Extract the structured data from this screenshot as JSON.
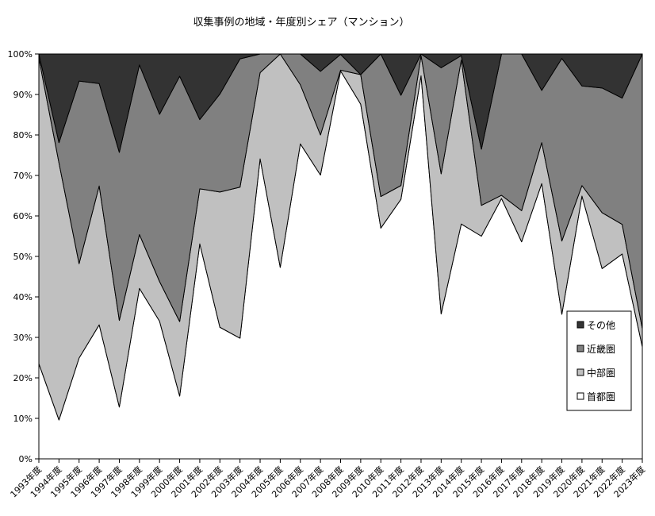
{
  "chart_data": {
    "type": "area",
    "stacked": "percent",
    "title": "収集事例の地域・年度別シェア（マンション）",
    "xlabel": "",
    "ylabel": "",
    "ylim": [
      0,
      100
    ],
    "y_ticks": [
      "0%",
      "10%",
      "20%",
      "30%",
      "40%",
      "50%",
      "60%",
      "70%",
      "80%",
      "90%",
      "100%"
    ],
    "legend_position": "right",
    "categories": [
      "1993年度",
      "1994年度",
      "1995年度",
      "1996年度",
      "1997年度",
      "1998年度",
      "1999年度",
      "2000年度",
      "2001年度",
      "2002年度",
      "2003年度",
      "2004年度",
      "2005年度",
      "2006年度",
      "2007年度",
      "2008年度",
      "2009年度",
      "2010年度",
      "2011年度",
      "2012年度",
      "2013年度",
      "2014年度",
      "2015年度",
      "2016年度",
      "2017年度",
      "2018年度",
      "2019年度",
      "2020年度",
      "2021年度",
      "2022年度",
      "2023年度"
    ],
    "series": [
      {
        "name": "首都圏",
        "color": "#ffffff",
        "values": [
          23.5,
          9.6,
          24.9,
          33.1,
          12.8,
          42.1,
          34.0,
          15.5,
          53.1,
          32.5,
          29.8,
          74.1,
          47.3,
          77.8,
          70.1,
          95.8,
          87.6,
          57.0,
          64.1,
          94.6,
          35.8,
          58.0,
          55.0,
          64.3,
          53.6,
          68.0,
          35.7,
          64.9,
          47.0,
          50.6,
          27.7
        ]
      },
      {
        "name": "中部圏",
        "color": "#c0c0c0",
        "values": [
          75.5,
          63.5,
          23.3,
          34.3,
          21.4,
          13.3,
          9.8,
          18.4,
          13.6,
          33.4,
          37.3,
          21.3,
          52.7,
          14.6,
          9.9,
          0.2,
          7.3,
          7.8,
          3.4,
          5.0,
          34.6,
          40.5,
          7.6,
          0.8,
          7.7,
          10.1,
          18.1,
          2.6,
          13.8,
          7.3,
          4.5
        ]
      },
      {
        "name": "近畿圏",
        "color": "#808080",
        "values": [
          1.0,
          5.0,
          45.1,
          25.3,
          41.5,
          41.9,
          41.3,
          60.6,
          17.1,
          24.2,
          31.7,
          4.6,
          0,
          7.6,
          15.7,
          3.9,
          0,
          35.2,
          22.3,
          0.4,
          26.2,
          1.1,
          13.9,
          34.9,
          38.7,
          12.9,
          45.1,
          24.6,
          30.8,
          31.2,
          67.8
        ]
      },
      {
        "name": "その他",
        "color": "#333333",
        "values": [
          0,
          21.9,
          6.7,
          7.3,
          24.3,
          2.7,
          14.9,
          5.5,
          16.2,
          9.9,
          1.2,
          0,
          0,
          0,
          4.3,
          0.1,
          5.1,
          0,
          10.2,
          0,
          3.4,
          0.4,
          23.5,
          0,
          0,
          9.0,
          1.1,
          7.9,
          8.4,
          10.9,
          0
        ]
      }
    ]
  }
}
